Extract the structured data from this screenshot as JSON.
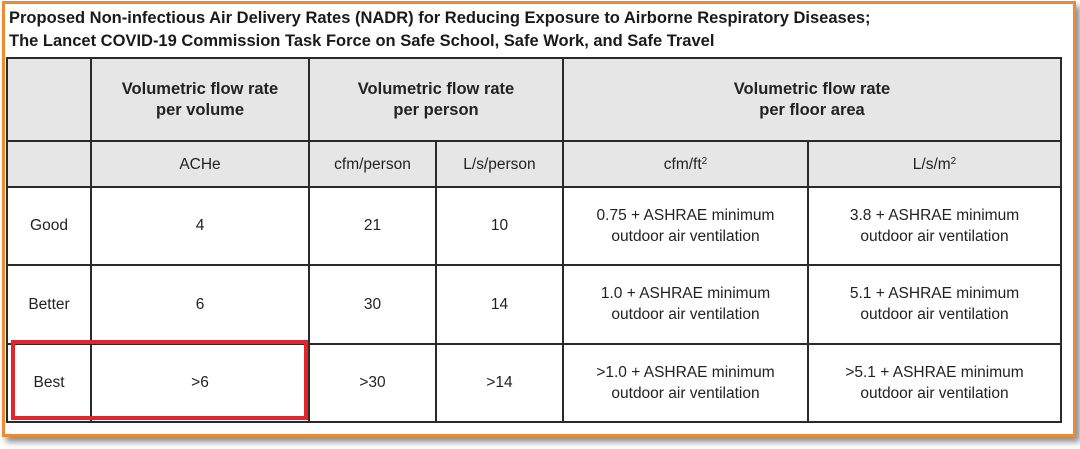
{
  "title": {
    "line1": "Proposed Non-infectious Air Delivery Rates (NADR) for Reducing Exposure to Airborne Respiratory Diseases;",
    "line2": "The Lancet COVID-19 Commission Task Force on Safe School, Safe Work, and Safe Travel"
  },
  "headers": {
    "per_volume": "Volumetric flow rate per volume",
    "per_person": "Volumetric flow rate per person",
    "per_floor_area": "Volumetric flow rate per floor area"
  },
  "units": {
    "ache": "ACHe",
    "cfm_person": "cfm/person",
    "ls_person": "L/s/person",
    "cfm_ft2_base": "cfm/ft",
    "cfm_ft2_exp": "2",
    "ls_m2_base": "L/s/m",
    "ls_m2_exp": "2"
  },
  "rows": [
    {
      "label": "Good",
      "ache": "4",
      "cfm_person": "21",
      "ls_person": "10",
      "cfm_ft2": "0.75 + ASHRAE minimum outdoor air ventilation",
      "ls_m2": "3.8 + ASHRAE minimum outdoor air ventilation"
    },
    {
      "label": "Better",
      "ache": "6",
      "cfm_person": "30",
      "ls_person": "14",
      "cfm_ft2": "1.0 + ASHRAE minimum outdoor air ventilation",
      "ls_m2": "5.1 + ASHRAE minimum outdoor air ventilation"
    },
    {
      "label": "Best",
      "ache": ">6",
      "cfm_person": ">30",
      "ls_person": ">14",
      "cfm_ft2": ">1.0 + ASHRAE minimum outdoor air ventilation",
      "ls_m2": ">5.1 + ASHRAE minimum outdoor air ventilation"
    }
  ],
  "colors": {
    "frame_border": "#ee8a33",
    "highlight_box": "#e0262c",
    "header_fill": "#e6e6e6"
  }
}
